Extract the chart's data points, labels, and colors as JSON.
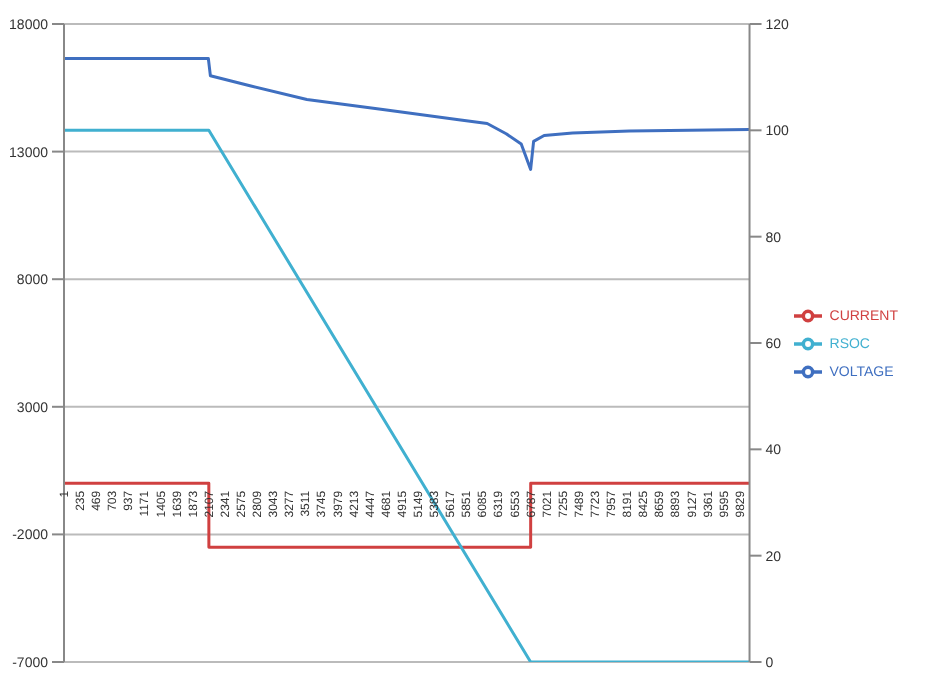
{
  "chart_data": {
    "type": "line",
    "xlim": [
      1,
      9970
    ],
    "xticks": [
      1,
      235,
      469,
      703,
      937,
      1171,
      1405,
      1639,
      1873,
      2107,
      2341,
      2575,
      2809,
      3043,
      3277,
      3511,
      3745,
      3979,
      4213,
      4447,
      4681,
      4915,
      5149,
      5383,
      5617,
      5851,
      6085,
      6319,
      6553,
      6787,
      7021,
      7255,
      7489,
      7723,
      7957,
      8191,
      8425,
      8659,
      8893,
      9127,
      9361,
      9595,
      9829
    ],
    "ylim": [
      -7000,
      18000
    ],
    "yticks": [
      -7000,
      -2000,
      3000,
      8000,
      13000,
      18000
    ],
    "y2lim": [
      0,
      120
    ],
    "y2ticks": [
      0,
      20,
      40,
      60,
      80,
      100,
      120
    ],
    "grid": "y",
    "legend": "right",
    "marker": "none",
    "line_style": "solid",
    "series": [
      {
        "name": "VOLTAGE",
        "color": "#3f6fc0",
        "x": [
          1,
          2100,
          2130,
          2705,
          3533,
          4637,
          5741,
          6155,
          6431,
          6650,
          6787,
          6830,
          6983,
          7397,
          8225,
          9970
        ],
        "values": [
          16650,
          16650,
          15970,
          15580,
          15040,
          14650,
          14250,
          14100,
          13700,
          13300,
          12300,
          13400,
          13630,
          13730,
          13810,
          13870
        ]
      },
      {
        "name": "CURRENT",
        "color": "#d04040",
        "x": [
          1,
          2107,
          2108,
          6787,
          6788,
          9970
        ],
        "values": [
          0,
          0,
          -2500,
          -2500,
          0,
          0
        ]
      },
      {
        "name": "RSOC",
        "color": "#40b0d0",
        "axis": "y2",
        "x": [
          1,
          2107,
          6787,
          9970
        ],
        "values": [
          100,
          100,
          0,
          0
        ]
      }
    ]
  }
}
